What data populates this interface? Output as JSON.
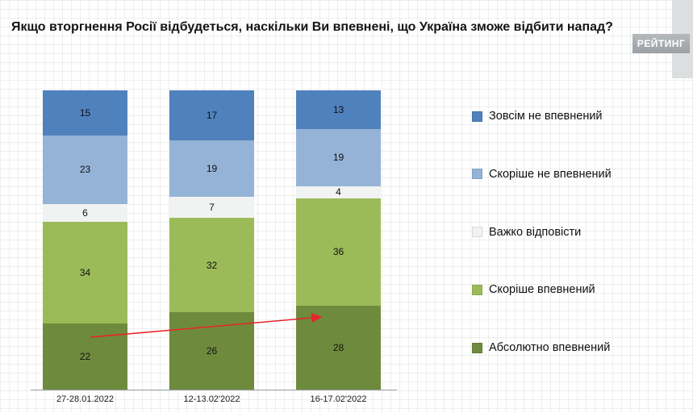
{
  "header": {
    "title": "Якщо вторгнення Росії відбудеться, наскільки Ви впевнені, що Україна зможе відбити напад?",
    "logo_text": "РЕЙТИНГ"
  },
  "chart_data": {
    "type": "bar",
    "stacked": true,
    "title": "Якщо вторгнення Росії відбудеться, наскільки Ви впевнені, що Україна зможе відбити напад?",
    "categories": [
      "27-28.01.2022",
      "12-13.02'2022",
      "16-17.02'2022"
    ],
    "series": [
      {
        "name": "Зовсім не впевнений",
        "color": "#4f81bd",
        "values": [
          15,
          17,
          13
        ]
      },
      {
        "name": "Скоріше не впевнений",
        "color": "#95b3d7",
        "values": [
          23,
          19,
          19
        ]
      },
      {
        "name": "Важко відповісти",
        "color": "#f1f2f2",
        "values": [
          6,
          7,
          4
        ]
      },
      {
        "name": "Скоріше впевнений",
        "color": "#9bbb59",
        "values": [
          34,
          32,
          36
        ]
      },
      {
        "name": "Абсолютно впевнений",
        "color": "#6e8b3d",
        "values": [
          22,
          26,
          28
        ]
      }
    ],
    "legend_position": "right",
    "ylim": [
      0,
      100
    ],
    "grid": true,
    "annotations": [
      {
        "type": "arrow",
        "color": "#e8232a",
        "series": "Абсолютно впевнений",
        "from_category": "27-28.01.2022",
        "to_category": "16-17.02'2022"
      }
    ]
  }
}
